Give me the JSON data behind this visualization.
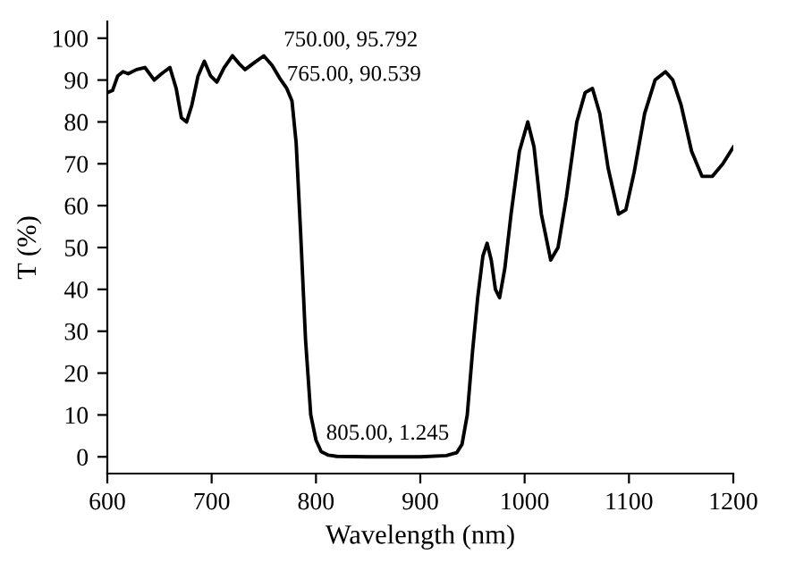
{
  "chart_data": {
    "type": "line",
    "xlabel": "Wavelength (nm)",
    "ylabel": "T (%)",
    "xlim": [
      600,
      1200
    ],
    "xticks": [
      600,
      700,
      800,
      900,
      1000,
      1100,
      1200
    ],
    "ylim": [
      -4,
      104
    ],
    "yticks": [
      0,
      10,
      20,
      30,
      40,
      50,
      60,
      70,
      80,
      90,
      100
    ],
    "grid": false,
    "marker": "none",
    "line_style": "solid",
    "series": [
      {
        "color": "#000000",
        "x": [
          600,
          605,
          610,
          615,
          620,
          628,
          636,
          645,
          652,
          660,
          666,
          671,
          676,
          681,
          687,
          693,
          699,
          705,
          712,
          720,
          726,
          732,
          740,
          750,
          758,
          765,
          772,
          777,
          781,
          785,
          790,
          795,
          800,
          805,
          812,
          820,
          850,
          900,
          925,
          935,
          940,
          945,
          950,
          955,
          960,
          964,
          968,
          972,
          976,
          981,
          987,
          995,
          1003,
          1009,
          1016,
          1025,
          1032,
          1040,
          1050,
          1058,
          1065,
          1072,
          1080,
          1090,
          1097,
          1105,
          1115,
          1125,
          1135,
          1142,
          1150,
          1160,
          1170,
          1180,
          1190,
          1200
        ],
        "values": [
          87,
          87.5,
          91,
          92,
          91.5,
          92.5,
          93,
          90,
          91.5,
          93,
          88,
          81,
          80,
          84,
          91,
          94.5,
          91,
          89.5,
          93,
          95.8,
          94,
          92.5,
          94,
          95.792,
          93.5,
          90.539,
          88,
          85,
          75,
          55,
          28,
          10,
          4,
          1.245,
          0.4,
          0.1,
          0,
          0,
          0.3,
          1,
          3,
          10,
          25,
          38,
          48,
          51,
          47,
          40,
          38,
          45,
          58,
          73,
          80,
          74,
          58,
          47,
          50,
          62,
          80,
          87,
          88,
          82,
          69,
          58,
          59,
          68,
          82,
          90,
          92,
          90,
          84,
          73,
          67,
          67,
          70,
          74
        ]
      }
    ],
    "annotations": [
      {
        "text": "750.00, 95.792",
        "x": 750,
        "y": 95.792
      },
      {
        "text": "765.00, 90.539",
        "x": 765,
        "y": 90.539
      },
      {
        "text": "805.00, 1.245",
        "x": 805,
        "y": 1.245
      }
    ]
  }
}
